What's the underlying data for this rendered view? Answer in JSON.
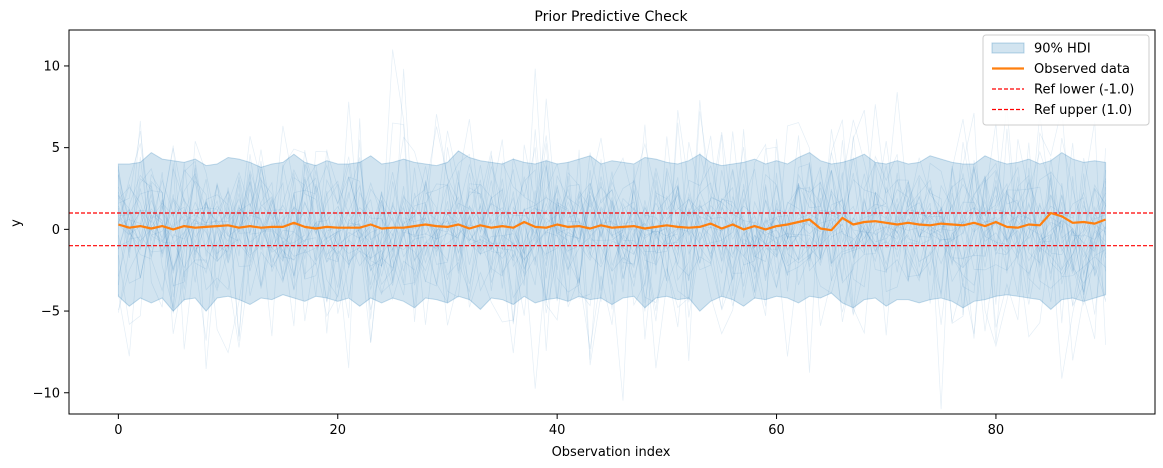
{
  "chart_data": {
    "type": "line",
    "title": "Prior Predictive Check",
    "xlabel": "Observation index",
    "ylabel": "y",
    "xlim": [
      -4.5,
      94.5
    ],
    "ylim": [
      -11.3,
      12.2
    ],
    "xticks": [
      0,
      20,
      40,
      60,
      80
    ],
    "yticks": [
      -10,
      -5,
      0,
      5,
      10
    ],
    "ytick_labels": [
      "−10",
      "−5",
      "0",
      "5",
      "10"
    ],
    "grid": false,
    "legend_position": "top-right",
    "legend": [
      {
        "label": "90% HDI",
        "kind": "band",
        "color": "#1f77b4"
      },
      {
        "label": "Observed data",
        "kind": "line",
        "color": "#ff7f0e"
      },
      {
        "label": "Ref lower (-1.0)",
        "kind": "dashed",
        "color": "#ff0000"
      },
      {
        "label": "Ref upper (1.0)",
        "kind": "dashed",
        "color": "#ff0000"
      }
    ],
    "reference_lines": [
      {
        "name": "Ref lower (-1.0)",
        "y": -1.0,
        "color": "#ff0000"
      },
      {
        "name": "Ref upper (1.0)",
        "y": 1.0,
        "color": "#ff0000"
      }
    ],
    "hdi_band": {
      "x": [
        0,
        1,
        2,
        3,
        4,
        5,
        6,
        7,
        8,
        9,
        10,
        11,
        12,
        13,
        14,
        15,
        16,
        17,
        18,
        19,
        20,
        21,
        22,
        23,
        24,
        25,
        26,
        27,
        28,
        29,
        30,
        31,
        32,
        33,
        34,
        35,
        36,
        37,
        38,
        39,
        40,
        41,
        42,
        43,
        44,
        45,
        46,
        47,
        48,
        49,
        50,
        51,
        52,
        53,
        54,
        55,
        56,
        57,
        58,
        59,
        60,
        61,
        62,
        63,
        64,
        65,
        66,
        67,
        68,
        69,
        70,
        71,
        72,
        73,
        74,
        75,
        76,
        77,
        78,
        79,
        80,
        81,
        82,
        83,
        84,
        85,
        86,
        87,
        88,
        89,
        90
      ],
      "upper": [
        4.0,
        4.0,
        4.1,
        4.7,
        4.3,
        4.2,
        4.1,
        4.3,
        3.9,
        4.0,
        4.4,
        4.3,
        4.1,
        3.8,
        4.0,
        4.1,
        4.6,
        4.1,
        3.9,
        4.2,
        4.0,
        4.0,
        4.1,
        4.5,
        4.0,
        4.1,
        4.3,
        4.1,
        4.0,
        3.9,
        4.1,
        4.8,
        4.4,
        4.2,
        4.1,
        4.0,
        4.3,
        4.1,
        4.0,
        4.2,
        4.0,
        4.1,
        4.3,
        4.5,
        4.0,
        4.2,
        4.1,
        4.0,
        4.4,
        4.3,
        4.1,
        4.0,
        4.2,
        4.6,
        4.1,
        3.9,
        4.0,
        4.1,
        4.3,
        4.0,
        4.2,
        4.0,
        4.4,
        4.7,
        4.2,
        4.0,
        4.1,
        4.3,
        4.6,
        4.1,
        4.0,
        4.2,
        4.0,
        4.1,
        4.5,
        4.3,
        4.1,
        4.0,
        4.0,
        4.5,
        4.2,
        4.0,
        4.1,
        4.3,
        4.0,
        4.2,
        4.7,
        4.3,
        4.1,
        4.2,
        4.1
      ],
      "lower": [
        -4.1,
        -4.7,
        -4.2,
        -4.5,
        -4.2,
        -5.0,
        -4.3,
        -4.2,
        -5.0,
        -4.2,
        -4.1,
        -4.3,
        -4.6,
        -4.2,
        -4.3,
        -4.0,
        -4.2,
        -4.4,
        -4.1,
        -4.2,
        -4.4,
        -4.2,
        -4.7,
        -4.2,
        -4.5,
        -4.2,
        -4.4,
        -4.8,
        -4.2,
        -4.3,
        -4.5,
        -4.1,
        -4.3,
        -4.9,
        -4.2,
        -4.3,
        -4.6,
        -4.1,
        -4.5,
        -4.3,
        -4.2,
        -4.4,
        -4.1,
        -4.3,
        -4.2,
        -4.6,
        -4.2,
        -4.1,
        -4.8,
        -4.2,
        -4.1,
        -4.3,
        -4.2,
        -5.0,
        -4.4,
        -4.1,
        -4.3,
        -4.7,
        -4.2,
        -4.3,
        -4.1,
        -4.2,
        -4.5,
        -4.1,
        -4.2,
        -3.9,
        -4.5,
        -4.8,
        -4.3,
        -4.2,
        -4.7,
        -4.3,
        -4.3,
        -4.5,
        -4.3,
        -4.2,
        -4.4,
        -4.8,
        -4.4,
        -4.3,
        -4.1,
        -4.0,
        -4.1,
        -4.2,
        -4.3,
        -4.9,
        -4.3,
        -4.2,
        -4.4,
        -4.2,
        -4.0
      ]
    },
    "series": [
      {
        "name": "Observed data",
        "color": "#ff7f0e",
        "x": [
          0,
          1,
          2,
          3,
          4,
          5,
          6,
          7,
          8,
          9,
          10,
          11,
          12,
          13,
          14,
          15,
          16,
          17,
          18,
          19,
          20,
          21,
          22,
          23,
          24,
          25,
          26,
          27,
          28,
          29,
          30,
          31,
          32,
          33,
          34,
          35,
          36,
          37,
          38,
          39,
          40,
          41,
          42,
          43,
          44,
          45,
          46,
          47,
          48,
          49,
          50,
          51,
          52,
          53,
          54,
          55,
          56,
          57,
          58,
          59,
          60,
          61,
          62,
          63,
          64,
          65,
          66,
          67,
          68,
          69,
          70,
          71,
          72,
          73,
          74,
          75,
          76,
          77,
          78,
          79,
          80,
          81,
          82,
          83,
          84,
          85,
          86,
          87,
          88,
          89,
          90
        ],
        "values": [
          0.3,
          0.1,
          0.2,
          0.05,
          0.2,
          0.0,
          0.2,
          0.1,
          0.15,
          0.2,
          0.25,
          0.1,
          0.2,
          0.1,
          0.15,
          0.15,
          0.4,
          0.15,
          0.05,
          0.15,
          0.1,
          0.1,
          0.1,
          0.3,
          0.05,
          0.1,
          0.1,
          0.2,
          0.3,
          0.2,
          0.15,
          0.3,
          0.05,
          0.25,
          0.1,
          0.2,
          0.1,
          0.45,
          0.15,
          0.1,
          0.3,
          0.15,
          0.2,
          0.05,
          0.25,
          0.1,
          0.15,
          0.2,
          0.05,
          0.15,
          0.25,
          0.15,
          0.1,
          0.15,
          0.35,
          0.05,
          0.3,
          0.0,
          0.2,
          0.0,
          0.2,
          0.3,
          0.45,
          0.6,
          0.05,
          -0.05,
          0.7,
          0.3,
          0.45,
          0.5,
          0.4,
          0.3,
          0.4,
          0.3,
          0.25,
          0.35,
          0.3,
          0.25,
          0.4,
          0.2,
          0.45,
          0.15,
          0.1,
          0.3,
          0.25,
          1.0,
          0.8,
          0.4,
          0.45,
          0.35,
          0.6
        ]
      }
    ],
    "draws_count": 30
  }
}
